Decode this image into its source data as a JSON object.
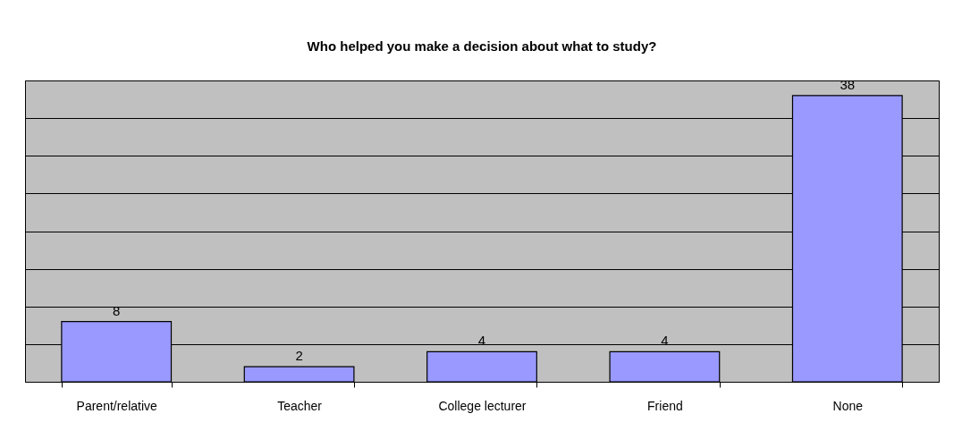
{
  "chart_data": {
    "type": "bar",
    "title": "Who helped you make a decision about what to study?",
    "categories": [
      "Parent/relative",
      "Teacher",
      "College lecturer",
      "Friend",
      "None"
    ],
    "values": [
      8,
      2,
      4,
      4,
      38
    ],
    "color": "#9999ff",
    "ylim": [
      0,
      40
    ],
    "yticks": [
      {
        "value": 0,
        "label": null
      },
      {
        "value": 5,
        "label": null
      },
      {
        "value": 10,
        "label": null
      },
      {
        "value": 15,
        "label": null
      },
      {
        "value": 20,
        "label": null
      },
      {
        "value": 25,
        "label": null
      },
      {
        "value": 30,
        "label": null
      },
      {
        "value": 35,
        "label": null
      },
      {
        "value": 40,
        "label": null
      }
    ],
    "grid": "y",
    "data_labels": true,
    "tick_labels": "x"
  }
}
